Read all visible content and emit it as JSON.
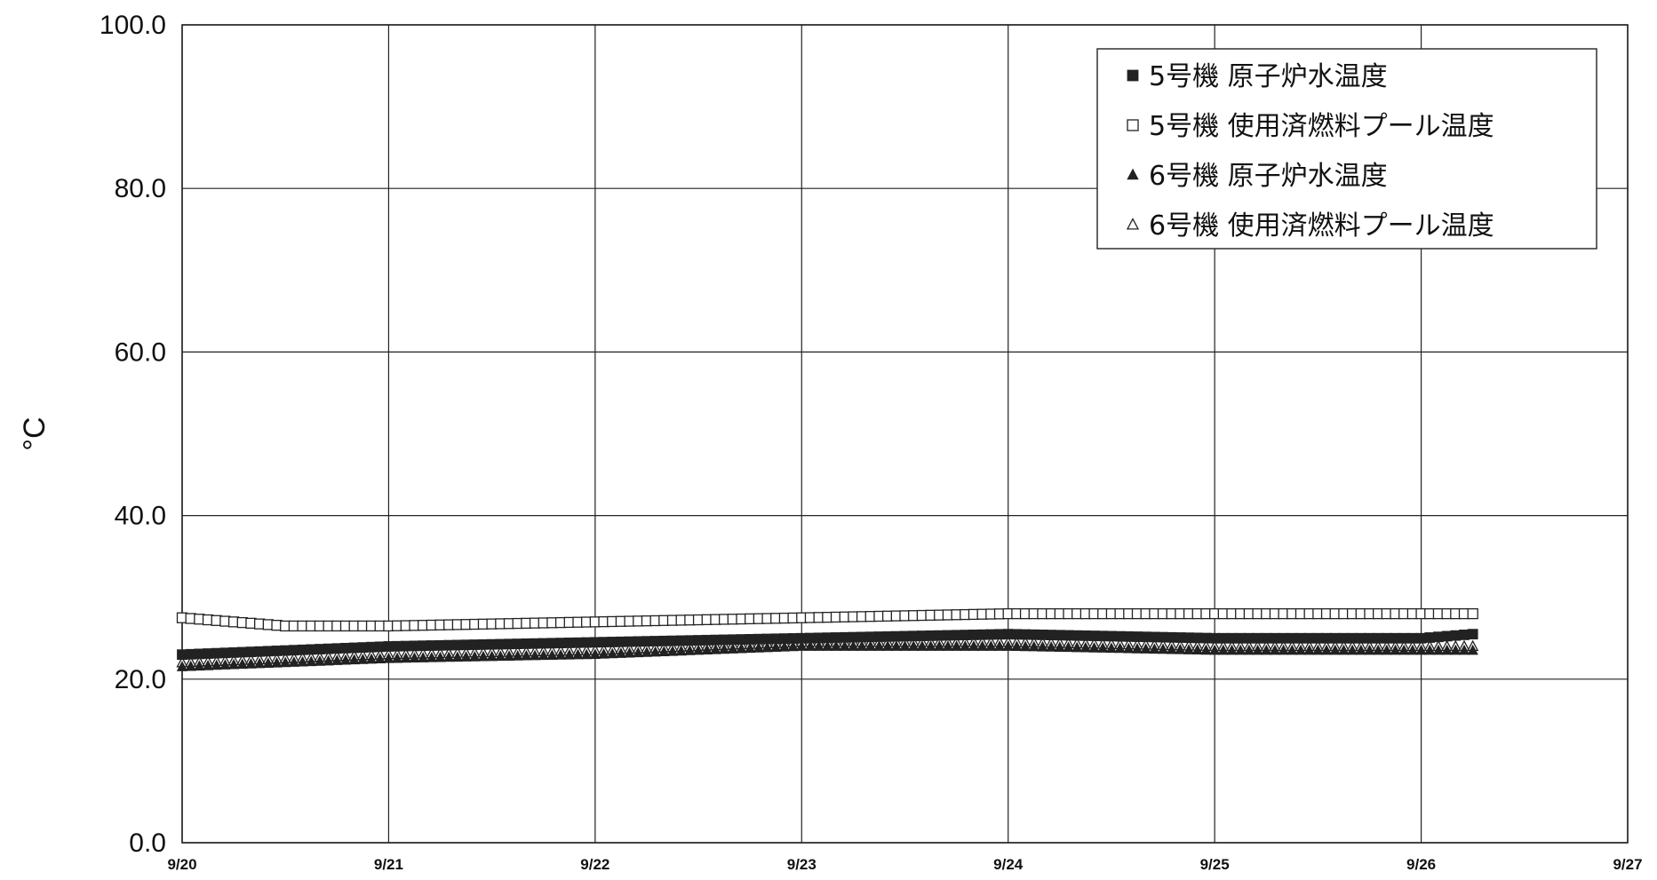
{
  "chart_data": {
    "type": "scatter",
    "ylabel": "°C",
    "ylim": [
      0,
      100
    ],
    "y_ticks": [
      "0.0",
      "20.0",
      "40.0",
      "60.0",
      "80.0",
      "100.0"
    ],
    "x_ticks": [
      "9/20",
      "9/21",
      "9/22",
      "9/23",
      "9/24",
      "9/25",
      "9/26",
      "9/27"
    ],
    "xlim": [
      "9/20",
      "9/27"
    ],
    "grid": true,
    "legend_position": "top-right",
    "series": [
      {
        "name": "5号機 原子炉水温度",
        "marker": "filled-square",
        "color": "#222222",
        "points": [
          [
            "9/20",
            23.0
          ],
          [
            "9/21",
            24.0
          ],
          [
            "9/22",
            24.5
          ],
          [
            "9/23",
            25.0
          ],
          [
            "9/24",
            25.5
          ],
          [
            "9/25",
            25.0
          ],
          [
            "9/26",
            25.0
          ],
          [
            "9/26 06:00",
            25.5
          ]
        ]
      },
      {
        "name": "5号機 使用済燃料プール温度",
        "marker": "hollow-square",
        "color": "#222222",
        "points": [
          [
            "9/20",
            27.5
          ],
          [
            "9/20 12:00",
            26.5
          ],
          [
            "9/21",
            26.5
          ],
          [
            "9/22",
            27.0
          ],
          [
            "9/23",
            27.5
          ],
          [
            "9/24",
            28.0
          ],
          [
            "9/25",
            28.0
          ],
          [
            "9/26",
            28.0
          ],
          [
            "9/26 06:00",
            28.0
          ]
        ]
      },
      {
        "name": "6号機 原子炉水温度",
        "marker": "filled-triangle",
        "color": "#222222",
        "points": [
          [
            "9/20",
            21.5
          ],
          [
            "9/21",
            22.5
          ],
          [
            "9/22",
            23.0
          ],
          [
            "9/23",
            24.0
          ],
          [
            "9/24",
            24.0
          ],
          [
            "9/25",
            23.5
          ],
          [
            "9/26",
            23.5
          ],
          [
            "9/26 06:00",
            23.5
          ]
        ]
      },
      {
        "name": "6号機 使用済燃料プール温度",
        "marker": "hollow-triangle",
        "color": "#222222",
        "points": [
          [
            "9/20",
            22.0
          ],
          [
            "9/21",
            23.0
          ],
          [
            "9/22",
            23.5
          ],
          [
            "9/23",
            24.5
          ],
          [
            "9/24",
            24.5
          ],
          [
            "9/25",
            24.0
          ],
          [
            "9/26",
            24.0
          ],
          [
            "9/26 06:00",
            24.0
          ]
        ]
      }
    ]
  }
}
